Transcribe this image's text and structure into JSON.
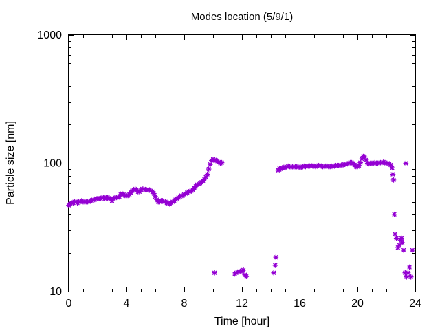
{
  "chart_data": {
    "type": "scatter",
    "title": "Modes location (5/9/1)",
    "xlabel": "Time [hour]",
    "ylabel": "Particle size [nm]",
    "xlim": [
      0,
      24
    ],
    "ylim": [
      10,
      1000
    ],
    "yscale": "log",
    "grid": false,
    "legend": "none",
    "xticks": [
      0,
      4,
      8,
      12,
      16,
      20,
      24
    ],
    "xtick_labels": [
      "0",
      "4",
      "8",
      "12",
      "16",
      "20",
      "24"
    ],
    "yticks": [
      10,
      100,
      1000
    ],
    "ytick_labels": [
      "10",
      "100",
      "1000"
    ],
    "marker_color": "#9400d3",
    "series": [
      {
        "points": [
          [
            0.0,
            47
          ],
          [
            0.1,
            48
          ],
          [
            0.2,
            49
          ],
          [
            0.3,
            49
          ],
          [
            0.4,
            50
          ],
          [
            0.5,
            50
          ],
          [
            0.6,
            49
          ],
          [
            0.7,
            50
          ],
          [
            0.8,
            50
          ],
          [
            0.9,
            51
          ],
          [
            1.0,
            50
          ],
          [
            1.1,
            50
          ],
          [
            1.2,
            50
          ],
          [
            1.3,
            50
          ],
          [
            1.4,
            50
          ],
          [
            1.5,
            51
          ],
          [
            1.6,
            51
          ],
          [
            1.7,
            52
          ],
          [
            1.8,
            52
          ],
          [
            1.9,
            53
          ],
          [
            2.0,
            53
          ],
          [
            2.1,
            53
          ],
          [
            2.2,
            53
          ],
          [
            2.3,
            54
          ],
          [
            2.4,
            54
          ],
          [
            2.5,
            53
          ],
          [
            2.6,
            54
          ],
          [
            2.7,
            54
          ],
          [
            2.8,
            53
          ],
          [
            2.9,
            53
          ],
          [
            3.0,
            51
          ],
          [
            3.1,
            53
          ],
          [
            3.2,
            54
          ],
          [
            3.3,
            54
          ],
          [
            3.4,
            54
          ],
          [
            3.5,
            55
          ],
          [
            3.6,
            57
          ],
          [
            3.7,
            58
          ],
          [
            3.8,
            57
          ],
          [
            3.9,
            56
          ],
          [
            4.0,
            56
          ],
          [
            4.1,
            56
          ],
          [
            4.2,
            57
          ],
          [
            4.3,
            59
          ],
          [
            4.4,
            61
          ],
          [
            4.5,
            62
          ],
          [
            4.6,
            63
          ],
          [
            4.7,
            62
          ],
          [
            4.8,
            60
          ],
          [
            4.9,
            60
          ],
          [
            5.0,
            62
          ],
          [
            5.1,
            63
          ],
          [
            5.2,
            63
          ],
          [
            5.3,
            62
          ],
          [
            5.4,
            62
          ],
          [
            5.5,
            62
          ],
          [
            5.6,
            62
          ],
          [
            5.7,
            61
          ],
          [
            5.8,
            60
          ],
          [
            5.9,
            58
          ],
          [
            6.0,
            55
          ],
          [
            6.1,
            52
          ],
          [
            6.2,
            50
          ],
          [
            6.3,
            50
          ],
          [
            6.4,
            51
          ],
          [
            6.5,
            51
          ],
          [
            6.6,
            50
          ],
          [
            6.7,
            50
          ],
          [
            6.8,
            49
          ],
          [
            6.9,
            49
          ],
          [
            7.0,
            48
          ],
          [
            7.1,
            49
          ],
          [
            7.2,
            50
          ],
          [
            7.3,
            51
          ],
          [
            7.4,
            52
          ],
          [
            7.5,
            53
          ],
          [
            7.6,
            54
          ],
          [
            7.7,
            55
          ],
          [
            7.8,
            56
          ],
          [
            7.9,
            56
          ],
          [
            8.0,
            57
          ],
          [
            8.1,
            58
          ],
          [
            8.2,
            59
          ],
          [
            8.3,
            60
          ],
          [
            8.4,
            60
          ],
          [
            8.5,
            61
          ],
          [
            8.6,
            62
          ],
          [
            8.7,
            64
          ],
          [
            8.8,
            66
          ],
          [
            8.9,
            68
          ],
          [
            9.0,
            69
          ],
          [
            9.1,
            70
          ],
          [
            9.2,
            71
          ],
          [
            9.3,
            73
          ],
          [
            9.4,
            75
          ],
          [
            9.5,
            78
          ],
          [
            9.6,
            82
          ],
          [
            9.7,
            90
          ],
          [
            9.8,
            98
          ],
          [
            9.9,
            105
          ],
          [
            10.0,
            107
          ],
          [
            10.1,
            106
          ],
          [
            10.2,
            105
          ],
          [
            10.3,
            104
          ],
          [
            10.4,
            102
          ],
          [
            10.5,
            100
          ],
          [
            10.6,
            101
          ],
          [
            10.1,
            14.0
          ],
          [
            11.5,
            13.7
          ],
          [
            11.6,
            14.0
          ],
          [
            11.7,
            14.2
          ],
          [
            11.8,
            14.3
          ],
          [
            11.9,
            14.4
          ],
          [
            12.0,
            14.5
          ],
          [
            12.1,
            14.7
          ],
          [
            12.2,
            13.5
          ],
          [
            12.3,
            13.1
          ],
          [
            14.2,
            14.0
          ],
          [
            14.3,
            16.0
          ],
          [
            14.35,
            18.5
          ],
          [
            14.5,
            88
          ],
          [
            14.6,
            91
          ],
          [
            14.7,
            90
          ],
          [
            14.8,
            92
          ],
          [
            14.9,
            93
          ],
          [
            15.0,
            92
          ],
          [
            15.1,
            94
          ],
          [
            15.2,
            95
          ],
          [
            15.3,
            94
          ],
          [
            15.4,
            93
          ],
          [
            15.5,
            94
          ],
          [
            15.6,
            93
          ],
          [
            15.7,
            94
          ],
          [
            15.8,
            94
          ],
          [
            15.9,
            93
          ],
          [
            16.0,
            93
          ],
          [
            16.1,
            93
          ],
          [
            16.2,
            94
          ],
          [
            16.3,
            95
          ],
          [
            16.4,
            94
          ],
          [
            16.5,
            95
          ],
          [
            16.6,
            95
          ],
          [
            16.7,
            95
          ],
          [
            16.8,
            96
          ],
          [
            16.9,
            95
          ],
          [
            17.0,
            95
          ],
          [
            17.1,
            94
          ],
          [
            17.2,
            95
          ],
          [
            17.3,
            96
          ],
          [
            17.4,
            96
          ],
          [
            17.5,
            95
          ],
          [
            17.6,
            94
          ],
          [
            17.7,
            94
          ],
          [
            17.8,
            95
          ],
          [
            17.9,
            95
          ],
          [
            18.0,
            94
          ],
          [
            18.1,
            94
          ],
          [
            18.2,
            95
          ],
          [
            18.3,
            94
          ],
          [
            18.4,
            95
          ],
          [
            18.5,
            96
          ],
          [
            18.6,
            96
          ],
          [
            18.7,
            96
          ],
          [
            18.8,
            96
          ],
          [
            18.9,
            97
          ],
          [
            19.0,
            97
          ],
          [
            19.1,
            98
          ],
          [
            19.2,
            98
          ],
          [
            19.3,
            99
          ],
          [
            19.4,
            100
          ],
          [
            19.5,
            101
          ],
          [
            19.6,
            101
          ],
          [
            19.7,
            100
          ],
          [
            19.8,
            97
          ],
          [
            19.9,
            94
          ],
          [
            20.0,
            94
          ],
          [
            20.1,
            96
          ],
          [
            20.2,
            101
          ],
          [
            20.3,
            108
          ],
          [
            20.4,
            113
          ],
          [
            20.5,
            112
          ],
          [
            20.6,
            106
          ],
          [
            20.7,
            100
          ],
          [
            20.8,
            99
          ],
          [
            20.9,
            100
          ],
          [
            21.0,
            100
          ],
          [
            21.1,
            100
          ],
          [
            21.2,
            101
          ],
          [
            21.3,
            100
          ],
          [
            21.4,
            100
          ],
          [
            21.5,
            101
          ],
          [
            21.6,
            101
          ],
          [
            21.7,
            101
          ],
          [
            21.8,
            102
          ],
          [
            21.9,
            101
          ],
          [
            22.0,
            100
          ],
          [
            22.1,
            100
          ],
          [
            22.2,
            99
          ],
          [
            22.3,
            97
          ],
          [
            22.4,
            92
          ],
          [
            22.45,
            82
          ],
          [
            22.5,
            74
          ],
          [
            22.55,
            40
          ],
          [
            22.6,
            28
          ],
          [
            22.7,
            26
          ],
          [
            22.8,
            22
          ],
          [
            22.9,
            23
          ],
          [
            23.0,
            25
          ],
          [
            23.05,
            26
          ],
          [
            23.1,
            24
          ],
          [
            23.2,
            21
          ],
          [
            23.3,
            14
          ],
          [
            23.35,
            100
          ],
          [
            23.4,
            13
          ],
          [
            23.5,
            14
          ],
          [
            23.6,
            15.5
          ],
          [
            23.7,
            13
          ],
          [
            23.8,
            21
          ]
        ]
      }
    ]
  }
}
